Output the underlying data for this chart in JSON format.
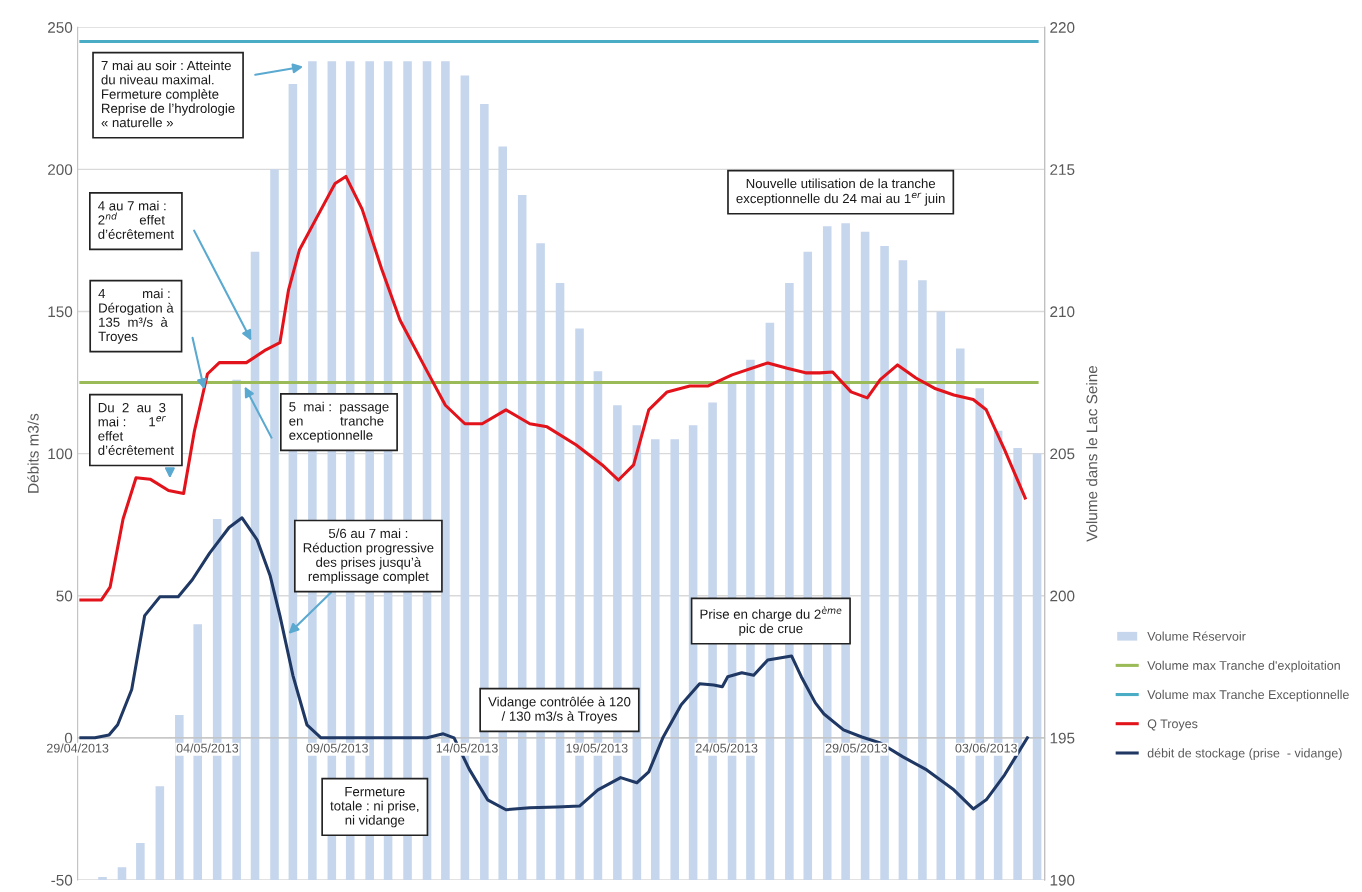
{
  "chart_data": {
    "type": "bar",
    "series": [
      {
        "name": "Volume Réservoir",
        "axis": "y2",
        "color": "#c6d6ec",
        "x": [
          "2013-04-29T23:00",
          "2013-04-30T17:00",
          "2013-05-01T10:00",
          "2013-05-02T04:00",
          "2013-05-02T22:00",
          "2013-05-03T15:00",
          "2013-05-04T09:00",
          "2013-05-05T03:00",
          "2013-05-05T20:00",
          "2013-05-06T14:00",
          "2013-05-07T07:00",
          "2013-05-08T01:00",
          "2013-05-08T19:00",
          "2013-05-09T12:00",
          "2013-05-10T06:00",
          "2013-05-10T23:00",
          "2013-05-11T17:00",
          "2013-05-12T11:00",
          "2013-05-13T04:00",
          "2013-05-13T22:00",
          "2013-05-14T16:00",
          "2013-05-15T09:00",
          "2013-05-16T03:00",
          "2013-05-16T20:00",
          "2013-05-17T14:00",
          "2013-05-18T08:00",
          "2013-05-19T01:00",
          "2013-05-19T19:00",
          "2013-05-20T13:00",
          "2013-05-21T06:00",
          "2013-05-22T00:00",
          "2013-05-22T17:00",
          "2013-05-23T11:00",
          "2013-05-24T05:00",
          "2013-05-24T22:00",
          "2013-05-25T16:00",
          "2013-05-26T10:00",
          "2013-05-27T03:00",
          "2013-05-27T21:00",
          "2013-05-28T14:00",
          "2013-05-29T08:00",
          "2013-05-30T02:00",
          "2013-05-30T19:00",
          "2013-05-31T13:00",
          "2013-06-01T06:00",
          "2013-06-02T00:00",
          "2013-06-02T18:00",
          "2013-06-03T11:00",
          "2013-06-04T05:00",
          "2013-06-04T23:00"
        ],
        "values": [
          190.1,
          190.45,
          191.3,
          193.3,
          195.8,
          199.0,
          202.7,
          207.6,
          212.1,
          215.0,
          218.0,
          218.8,
          218.8,
          218.8,
          218.8,
          218.8,
          218.8,
          218.8,
          218.8,
          218.3,
          217.3,
          215.8,
          214.1,
          212.4,
          211.0,
          209.4,
          207.9,
          206.7,
          206.0,
          205.5,
          205.5,
          206.0,
          206.8,
          207.5,
          208.3,
          209.6,
          211.0,
          212.1,
          213.0,
          213.1,
          212.8,
          212.3,
          211.8,
          211.1,
          210.0,
          208.7,
          207.3,
          205.8,
          205.2,
          205.0
        ]
      },
      {
        "name": "Volume max Tranche d'exploitation",
        "type": "line",
        "axis": "y2",
        "color": "#9bbb59",
        "x": [
          "2013-04-29T03:00",
          "2013-06-04T23:00"
        ],
        "values": [
          207.5,
          207.5
        ]
      },
      {
        "name": "Volume max Tranche Exceptionnelle",
        "type": "line",
        "axis": "y2",
        "color": "#4bacc6",
        "x": [
          "2013-04-29T03:00",
          "2013-06-04T23:00"
        ],
        "values": [
          219.5,
          219.5
        ]
      },
      {
        "name": "Q Troyes",
        "type": "line",
        "color": "#e3131b",
        "x": [
          "2013-04-29T03:00",
          "2013-04-29T22:00",
          "2013-04-30T06:00",
          "2013-04-30T18:00",
          "2013-05-01T06:00",
          "2013-05-01T19:00",
          "2013-05-02T12:00",
          "2013-05-03T02:00",
          "2013-05-03T12:00",
          "2013-05-04T00:00",
          "2013-05-04T11:00",
          "2013-05-05T12:00",
          "2013-05-06T06:00",
          "2013-05-06T19:00",
          "2013-05-07T03:00",
          "2013-05-07T13:00",
          "2013-05-08T05:00",
          "2013-05-08T22:00",
          "2013-05-09T08:00",
          "2013-05-09T23:00",
          "2013-05-10T17:00",
          "2013-05-11T10:00",
          "2013-05-12T11:00",
          "2013-05-13T04:00",
          "2013-05-13T22:00",
          "2013-05-14T14:00",
          "2013-05-15T12:00",
          "2013-05-16T10:00",
          "2013-05-17T02:00",
          "2013-05-18T05:00",
          "2013-05-19T05:00",
          "2013-05-19T20:00",
          "2013-05-20T10:00",
          "2013-05-21T00:00",
          "2013-05-21T17:00",
          "2013-05-22T14:00",
          "2013-05-23T07:00",
          "2013-05-24T05:00",
          "2013-05-25T14:00",
          "2013-05-26T08:00",
          "2013-05-27T01:00",
          "2013-05-27T14:00",
          "2013-05-28T02:00",
          "2013-05-28T19:00",
          "2013-05-29T10:00",
          "2013-05-29T22:00",
          "2013-05-30T14:00",
          "2013-05-31T07:00",
          "2013-06-01T00:00",
          "2013-06-01T18:00",
          "2013-06-02T12:00",
          "2013-06-03T00:00",
          "2013-06-03T17:00",
          "2013-06-04T12:00"
        ],
        "values": [
          48.5,
          48.5,
          53,
          77,
          91.5,
          91,
          87,
          86,
          108,
          128,
          132,
          132,
          136.5,
          139,
          157.6,
          171.6,
          183,
          195,
          197.5,
          186,
          165,
          147,
          129,
          117,
          110.5,
          110.5,
          115.4,
          110.5,
          109.4,
          103,
          96,
          90.7,
          96,
          115.4,
          121.7,
          123.8,
          123.8,
          127.7,
          131.9,
          130,
          128.4,
          128.4,
          128.7,
          121.7,
          119.6,
          126,
          131.2,
          126.6,
          123,
          120.6,
          119,
          115.4,
          101.3,
          84.4
        ]
      },
      {
        "name": "débit de stockage (prise  - vidange)",
        "type": "line",
        "color": "#1f3864",
        "x": [
          "2013-04-29T03:00",
          "2013-04-29T16:00",
          "2013-04-30T05:00",
          "2013-04-30T13:00",
          "2013-05-01T02:00",
          "2013-05-01T14:00",
          "2013-05-02T04:00",
          "2013-05-02T21:00",
          "2013-05-03T10:00",
          "2013-05-04T02:00",
          "2013-05-04T20:00",
          "2013-05-05T08:00",
          "2013-05-05T22:00",
          "2013-05-06T10:00",
          "2013-05-06T19:00",
          "2013-05-07T07:00",
          "2013-05-07T20:00",
          "2013-05-08T09:00",
          "2013-05-09T06:00",
          "2013-05-12T11:00",
          "2013-05-13T02:00",
          "2013-05-13T12:00",
          "2013-05-14T02:00",
          "2013-05-14T19:00",
          "2013-05-15T12:00",
          "2013-05-16T10:00",
          "2013-05-17T11:00",
          "2013-05-18T08:00",
          "2013-05-19T01:00",
          "2013-05-19T22:00",
          "2013-05-20T13:00",
          "2013-05-21T00:00",
          "2013-05-21T13:00",
          "2013-05-22T06:00",
          "2013-05-22T23:00",
          "2013-05-23T12:00",
          "2013-05-23T20:00",
          "2013-05-24T01:00",
          "2013-05-24T14:00",
          "2013-05-25T01:00",
          "2013-05-25T14:00",
          "2013-05-26T12:00",
          "2013-05-26T21:00",
          "2013-05-27T10:00",
          "2013-05-27T18:00",
          "2013-05-28T12:00",
          "2013-05-29T05:00",
          "2013-05-29T22:00",
          "2013-05-30T19:00",
          "2013-05-31T17:00",
          "2013-06-01T18:00",
          "2013-06-02T12:00",
          "2013-06-03T00:00",
          "2013-06-03T17:00",
          "2013-06-04T14:00"
        ],
        "values": [
          0,
          0,
          1,
          4.6,
          17,
          43,
          49.6,
          49.6,
          55.6,
          65,
          74,
          77.4,
          69.6,
          57,
          43,
          22,
          4.6,
          0,
          0,
          0,
          1.4,
          0,
          -11,
          -21.8,
          -25.3,
          -24.6,
          -24.3,
          -24,
          -18.3,
          -14,
          -15.8,
          -12,
          0,
          11.6,
          19,
          18.6,
          18,
          21.5,
          22.9,
          22,
          27.4,
          28.8,
          21.5,
          12.3,
          8.4,
          2.8,
          0.3,
          -1.8,
          -6.7,
          -11.3,
          -18.3,
          -25,
          -21.8,
          -13,
          0
        ]
      }
    ],
    "xlim": [
      "2013-04-29",
      "2013-06-05T06:00"
    ],
    "xticks": [
      {
        "value": "2013-04-29",
        "label": "29/04/2013"
      },
      {
        "value": "2013-05-04",
        "label": "04/05/2013"
      },
      {
        "value": "2013-05-09",
        "label": "09/05/2013"
      },
      {
        "value": "2013-05-14",
        "label": "14/05/2013"
      },
      {
        "value": "2013-05-19",
        "label": "19/05/2013"
      },
      {
        "value": "2013-05-24",
        "label": "24/05/2013"
      },
      {
        "value": "2013-05-29",
        "label": "29/05/2013"
      },
      {
        "value": "2013-06-03",
        "label": "03/06/2013"
      }
    ],
    "ylim": [
      -50,
      250
    ],
    "yticks": [
      -50,
      0,
      50,
      100,
      150,
      200,
      250
    ],
    "y2lim": [
      190,
      220
    ],
    "y2ticks": [
      190,
      195,
      200,
      205,
      210,
      215,
      220
    ],
    "ylabel": "Débits m3/s",
    "y2label": "Volume dans le Lac Seine",
    "grid": true,
    "legend": "right",
    "annotations": [
      "7 mai au soir : Atteinte\ndu niveau maximal.\nFermeture complète\nReprise de l’hydrologie\n« naturelle »",
      "4 au 7 mai :\n2$^{nd}$      effet\nd’écrêtement",
      "4          mai :\nDérogation à\n135  m³/s  à\nTroyes",
      "Du  2  au  3\nmai :      1$^{er}$\neffet\nd’écrêtement",
      "5  mai :  passage\nen          tranche\nexceptionnelle",
      {
        "text": "5/6 au 7 mai :\nRéduction progressive\ndes prises jusqu’à\nremplissage complet",
        "x": "2013-05-07T03:00",
        "y": 36.6
      },
      "Fermeture\ntotale : ni prise,\nni vidange",
      "Vidange contrôlée à 120\n/ 130 m3/s à Troyes",
      "Nouvelle utilisation de la tranche\nexceptionnelle du 24 mai au 1$^{er}$ juin",
      "Prise en charge du 2$^{ème}$\npic de crue"
    ]
  }
}
